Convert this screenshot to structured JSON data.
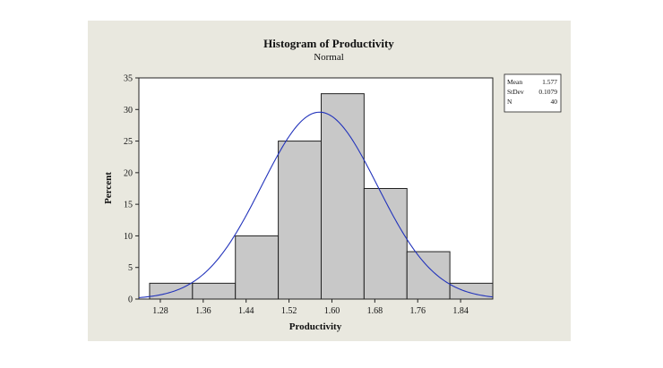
{
  "chart_data": {
    "type": "bar",
    "title": "Histogram of Productivity",
    "subtitle": "Normal",
    "xlabel": "Productivity",
    "ylabel": "Percent",
    "ylim": [
      0,
      35
    ],
    "xlim": [
      1.24,
      1.9
    ],
    "yticks": [
      0,
      5,
      10,
      15,
      20,
      25,
      30,
      35
    ],
    "xticks": [
      "1.28",
      "1.36",
      "1.44",
      "1.52",
      "1.60",
      "1.68",
      "1.76",
      "1.84"
    ],
    "bins": [
      {
        "from": 1.26,
        "to": 1.34,
        "value": 2.5
      },
      {
        "from": 1.34,
        "to": 1.42,
        "value": 2.5
      },
      {
        "from": 1.42,
        "to": 1.5,
        "value": 10
      },
      {
        "from": 1.5,
        "to": 1.58,
        "value": 25
      },
      {
        "from": 1.58,
        "to": 1.66,
        "value": 32.5
      },
      {
        "from": 1.66,
        "to": 1.74,
        "value": 17.5
      },
      {
        "from": 1.74,
        "to": 1.82,
        "value": 7.5
      },
      {
        "from": 1.82,
        "to": 1.9,
        "value": 2.5
      }
    ],
    "fit": {
      "distribution": "normal",
      "mean": 1.577,
      "stdev": 0.1079
    },
    "stats": [
      {
        "label": "Mean",
        "value": "1.577"
      },
      {
        "label": "StDev",
        "value": "0.1079"
      },
      {
        "label": "N",
        "value": "40"
      }
    ],
    "grid": false,
    "legend": "top-right",
    "colors": {
      "bar_fill": "#c8c8c8",
      "bar_edge": "#222222",
      "curve": "#2233bb",
      "panel": "#e9e8df",
      "plot_bg": "#ffffff"
    }
  }
}
